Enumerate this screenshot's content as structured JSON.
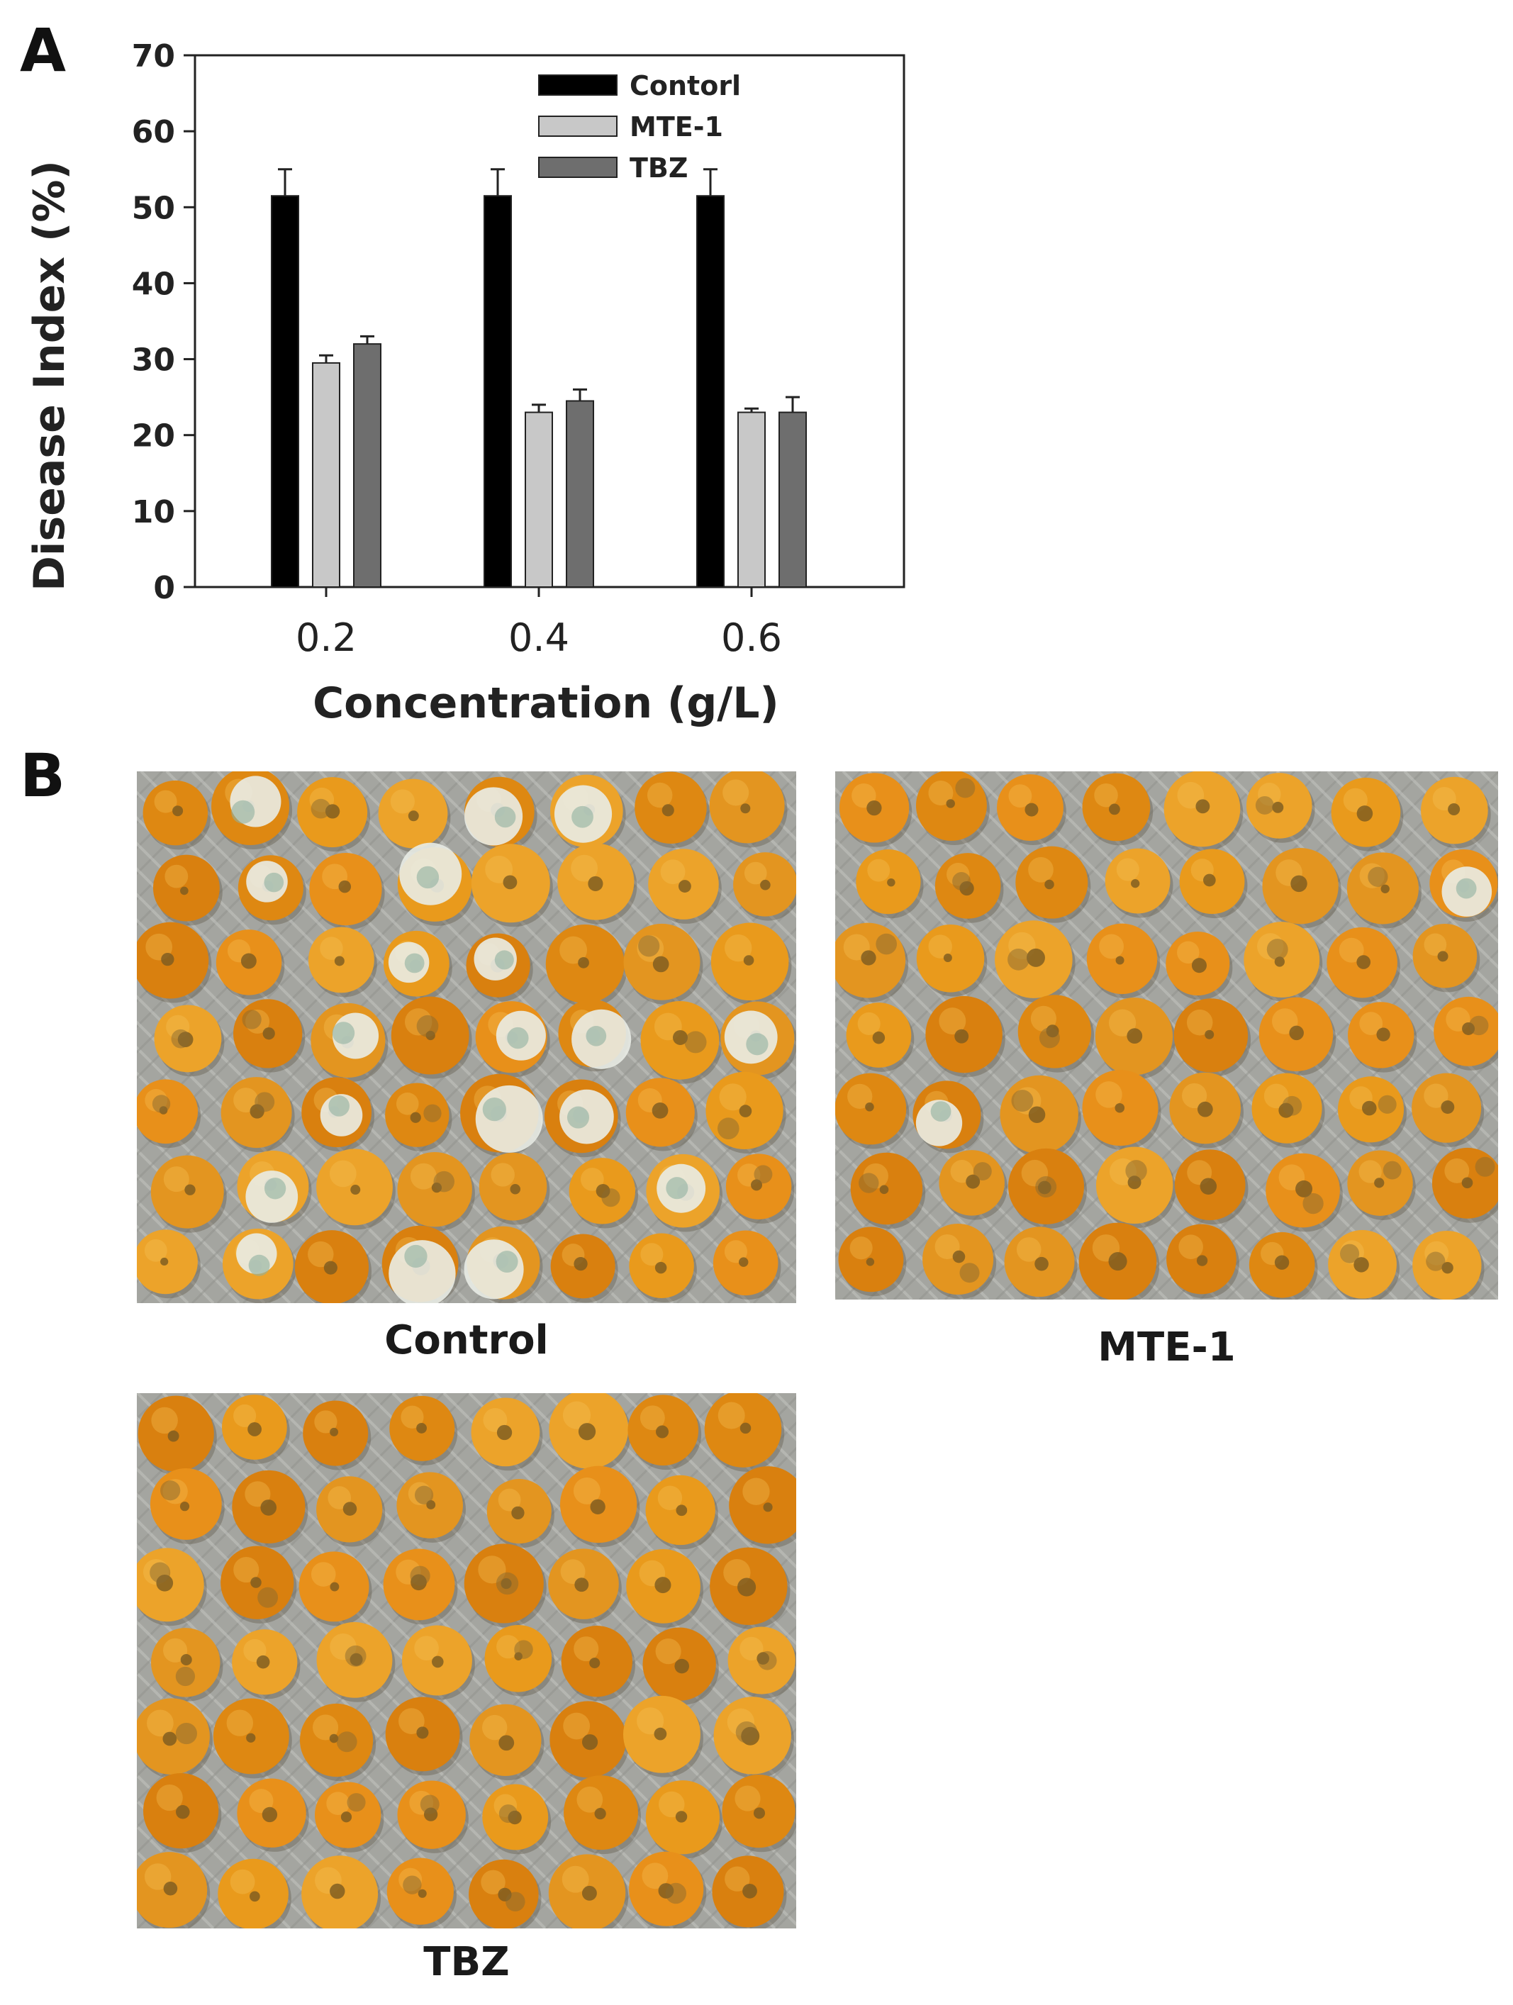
{
  "panels": {
    "a_label": "A",
    "b_label": "B"
  },
  "chart_data": {
    "type": "bar",
    "title": "",
    "xlabel": "Concentration (g/L)",
    "ylabel": "Disease Index (%)",
    "categories": [
      "0.2",
      "0.4",
      "0.6"
    ],
    "ylim": [
      0,
      70
    ],
    "yticks": [
      0,
      10,
      20,
      30,
      40,
      50,
      60,
      70
    ],
    "legend_position": "top-center",
    "series": [
      {
        "name": "Contorl",
        "color": "#000000",
        "values": [
          51.5,
          51.5,
          51.5
        ],
        "errors": [
          3.5,
          3.5,
          3.5
        ]
      },
      {
        "name": "MTE-1",
        "color": "#c8c8c8",
        "values": [
          29.5,
          23.0,
          23.0
        ],
        "errors": [
          1.0,
          1.0,
          0.5
        ]
      },
      {
        "name": "TBZ",
        "color": "#6e6e6e",
        "values": [
          32.0,
          24.5,
          23.0
        ],
        "errors": [
          1.0,
          1.5,
          2.0
        ]
      }
    ]
  },
  "photos": [
    {
      "caption": "Control",
      "mold_level": "heavy"
    },
    {
      "caption": "MTE-1",
      "mold_level": "light"
    },
    {
      "caption": "TBZ",
      "mold_level": "light"
    }
  ]
}
